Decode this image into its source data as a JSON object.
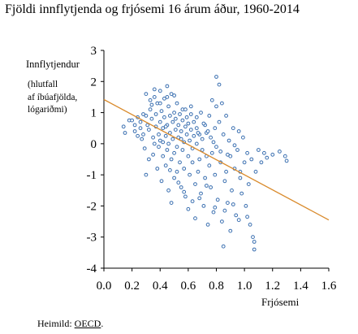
{
  "title": "Fjöldi innflytjenda og frjósemi 16 árum áður, 1960-2014",
  "source": {
    "prefix": "Heimild: ",
    "name": "OECD",
    "suffix": "."
  },
  "chart_data": {
    "type": "scatter",
    "xlabel": "Frjósemi",
    "ylabel": "Innflytjendur",
    "ylabel_note": [
      "(hlutfall",
      "af íbúafjölda,",
      "lógariðmi)"
    ],
    "xlim": [
      0.0,
      1.6
    ],
    "ylim": [
      -4,
      3
    ],
    "xticks": [
      "0.0",
      "0.2",
      "0.4",
      "0.6",
      "0.8",
      "1.0",
      "1.2",
      "1.4",
      "1.6"
    ],
    "yticks": [
      "-4",
      "-3",
      "-2",
      "-1",
      "0",
      "1",
      "2",
      "3"
    ],
    "grid": false,
    "marker_color": "#3a6fb0",
    "trendline_color": "#d98a2b",
    "trendline": {
      "x": [
        0.0,
        1.6
      ],
      "y": [
        1.42,
        -2.45
      ]
    },
    "points": [
      [
        0.14,
        0.55
      ],
      [
        0.15,
        0.35
      ],
      [
        0.18,
        0.75
      ],
      [
        0.2,
        0.75
      ],
      [
        0.22,
        0.6
      ],
      [
        0.22,
        0.4
      ],
      [
        0.24,
        0.85
      ],
      [
        0.24,
        0.25
      ],
      [
        0.26,
        0.7
      ],
      [
        0.26,
        0.5
      ],
      [
        0.27,
        0.15
      ],
      [
        0.28,
        0.95
      ],
      [
        0.28,
        0.3
      ],
      [
        0.29,
        -0.15
      ],
      [
        0.3,
        1.6
      ],
      [
        0.3,
        0.9
      ],
      [
        0.3,
        -1.0
      ],
      [
        0.31,
        0.6
      ],
      [
        0.32,
        0.45
      ],
      [
        0.32,
        -0.5
      ],
      [
        0.33,
        1.4
      ],
      [
        0.33,
        1.1
      ],
      [
        0.34,
        0.8
      ],
      [
        0.35,
        0.2
      ],
      [
        0.35,
        -0.35
      ],
      [
        0.36,
        1.75
      ],
      [
        0.36,
        1.5
      ],
      [
        0.37,
        0.95
      ],
      [
        0.37,
        0.55
      ],
      [
        0.38,
        -0.8
      ],
      [
        0.38,
        1.3
      ],
      [
        0.39,
        0.3
      ],
      [
        0.39,
        -0.1
      ],
      [
        0.4,
        1.7
      ],
      [
        0.4,
        0.7
      ],
      [
        0.4,
        0.1
      ],
      [
        0.41,
        -1.2
      ],
      [
        0.41,
        1.05
      ],
      [
        0.42,
        0.5
      ],
      [
        0.42,
        -0.4
      ],
      [
        0.43,
        1.45
      ],
      [
        0.43,
        0.85
      ],
      [
        0.44,
        0.25
      ],
      [
        0.44,
        -0.7
      ],
      [
        0.45,
        1.85
      ],
      [
        0.45,
        0.6
      ],
      [
        0.45,
        -0.2
      ],
      [
        0.46,
        1.2
      ],
      [
        0.46,
        0.0
      ],
      [
        0.46,
        -1.5
      ],
      [
        0.47,
        0.9
      ],
      [
        0.47,
        0.35
      ],
      [
        0.48,
        1.6
      ],
      [
        0.48,
        -0.5
      ],
      [
        0.48,
        -1.9
      ],
      [
        0.49,
        0.7
      ],
      [
        0.49,
        0.15
      ],
      [
        0.5,
        1.0
      ],
      [
        0.5,
        -0.3
      ],
      [
        0.5,
        -1.1
      ],
      [
        0.51,
        0.45
      ],
      [
        0.51,
        0.8
      ],
      [
        0.52,
        -0.1
      ],
      [
        0.52,
        -0.9
      ],
      [
        0.52,
        1.3
      ],
      [
        0.53,
        0.6
      ],
      [
        0.53,
        0.2
      ],
      [
        0.54,
        -0.6
      ],
      [
        0.54,
        0.95
      ],
      [
        0.55,
        -1.4
      ],
      [
        0.55,
        0.4
      ],
      [
        0.56,
        0.75
      ],
      [
        0.56,
        -0.2
      ],
      [
        0.56,
        1.1
      ],
      [
        0.57,
        0.05
      ],
      [
        0.57,
        -0.8
      ],
      [
        0.58,
        0.55
      ],
      [
        0.58,
        -1.7
      ],
      [
        0.59,
        0.3
      ],
      [
        0.59,
        0.85
      ],
      [
        0.6,
        -0.4
      ],
      [
        0.6,
        0.65
      ],
      [
        0.6,
        -2.1
      ],
      [
        0.61,
        0.1
      ],
      [
        0.61,
        -1.0
      ],
      [
        0.62,
        0.45
      ],
      [
        0.62,
        1.2
      ],
      [
        0.63,
        -0.15
      ],
      [
        0.63,
        -0.6
      ],
      [
        0.64,
        0.7
      ],
      [
        0.64,
        0.25
      ],
      [
        0.65,
        -1.3
      ],
      [
        0.65,
        -2.4
      ],
      [
        0.66,
        0.5
      ],
      [
        0.66,
        0.0
      ],
      [
        0.67,
        -0.9
      ],
      [
        0.68,
        0.3
      ],
      [
        0.68,
        -0.5
      ],
      [
        0.69,
        1.0
      ],
      [
        0.69,
        -1.6
      ],
      [
        0.7,
        0.15
      ],
      [
        0.7,
        -0.2
      ],
      [
        0.71,
        -2.0
      ],
      [
        0.72,
        0.6
      ],
      [
        0.72,
        -1.1
      ],
      [
        0.73,
        0.35
      ],
      [
        0.73,
        -0.4
      ],
      [
        0.74,
        -2.6
      ],
      [
        0.75,
        0.9
      ],
      [
        0.75,
        -0.7
      ],
      [
        0.76,
        0.2
      ],
      [
        0.76,
        -1.4
      ],
      [
        0.77,
        1.4
      ],
      [
        0.77,
        -0.3
      ],
      [
        0.78,
        -2.2
      ],
      [
        0.79,
        0.5
      ],
      [
        0.79,
        -1.0
      ],
      [
        0.8,
        2.15
      ],
      [
        0.8,
        1.2
      ],
      [
        0.8,
        -0.1
      ],
      [
        0.81,
        -1.8
      ],
      [
        0.82,
        1.9
      ],
      [
        0.82,
        0.7
      ],
      [
        0.83,
        -0.6
      ],
      [
        0.84,
        -2.5
      ],
      [
        0.84,
        1.3
      ],
      [
        0.85,
        -3.3
      ],
      [
        0.85,
        0.3
      ],
      [
        0.86,
        -1.2
      ],
      [
        0.87,
        0.9
      ],
      [
        0.87,
        -0.9
      ],
      [
        0.88,
        -1.9
      ],
      [
        0.89,
        0.1
      ],
      [
        0.9,
        -0.4
      ],
      [
        0.9,
        -2.8
      ],
      [
        0.91,
        -1.5
      ],
      [
        0.92,
        0.5
      ],
      [
        0.93,
        -0.8
      ],
      [
        0.94,
        -2.3
      ],
      [
        0.95,
        -0.2
      ],
      [
        0.96,
        0.4
      ],
      [
        0.97,
        -1.1
      ],
      [
        0.98,
        -1.6
      ],
      [
        0.99,
        0.2
      ],
      [
        1.0,
        -0.6
      ],
      [
        1.01,
        -2.0
      ],
      [
        1.02,
        -0.3
      ],
      [
        1.03,
        -1.3
      ],
      [
        1.04,
        -2.6
      ],
      [
        1.05,
        -0.5
      ],
      [
        1.06,
        -3.0
      ],
      [
        1.07,
        -3.15
      ],
      [
        1.07,
        -3.4
      ],
      [
        1.08,
        -0.9
      ],
      [
        1.1,
        -0.2
      ],
      [
        1.12,
        -0.6
      ],
      [
        1.14,
        -0.3
      ],
      [
        1.16,
        -0.45
      ],
      [
        1.2,
        -0.35
      ],
      [
        1.25,
        -0.25
      ],
      [
        1.29,
        -0.4
      ],
      [
        1.3,
        -0.55
      ],
      [
        0.34,
        1.25
      ],
      [
        0.4,
        1.3
      ],
      [
        0.45,
        1.5
      ],
      [
        0.5,
        1.55
      ],
      [
        0.58,
        1.1
      ],
      [
        0.62,
        0.95
      ],
      [
        0.66,
        0.85
      ],
      [
        0.71,
        0.65
      ],
      [
        0.74,
        0.4
      ],
      [
        0.78,
        0.05
      ],
      [
        0.83,
        -0.25
      ],
      [
        0.88,
        -0.35
      ],
      [
        0.93,
        -0.05
      ],
      [
        0.97,
        -0.9
      ],
      [
        0.42,
        0.05
      ],
      [
        0.47,
        -0.85
      ],
      [
        0.53,
        -1.25
      ],
      [
        0.57,
        -1.55
      ],
      [
        0.63,
        -1.85
      ],
      [
        0.68,
        -1.75
      ],
      [
        0.73,
        -1.35
      ],
      [
        0.79,
        -2.05
      ],
      [
        0.86,
        -2.15
      ],
      [
        0.92,
        -1.95
      ],
      [
        0.96,
        -2.45
      ],
      [
        1.02,
        -2.35
      ],
      [
        0.36,
        0.0
      ],
      [
        0.44,
        0.55
      ],
      [
        0.55,
        0.15
      ],
      [
        0.67,
        0.35
      ]
    ]
  }
}
